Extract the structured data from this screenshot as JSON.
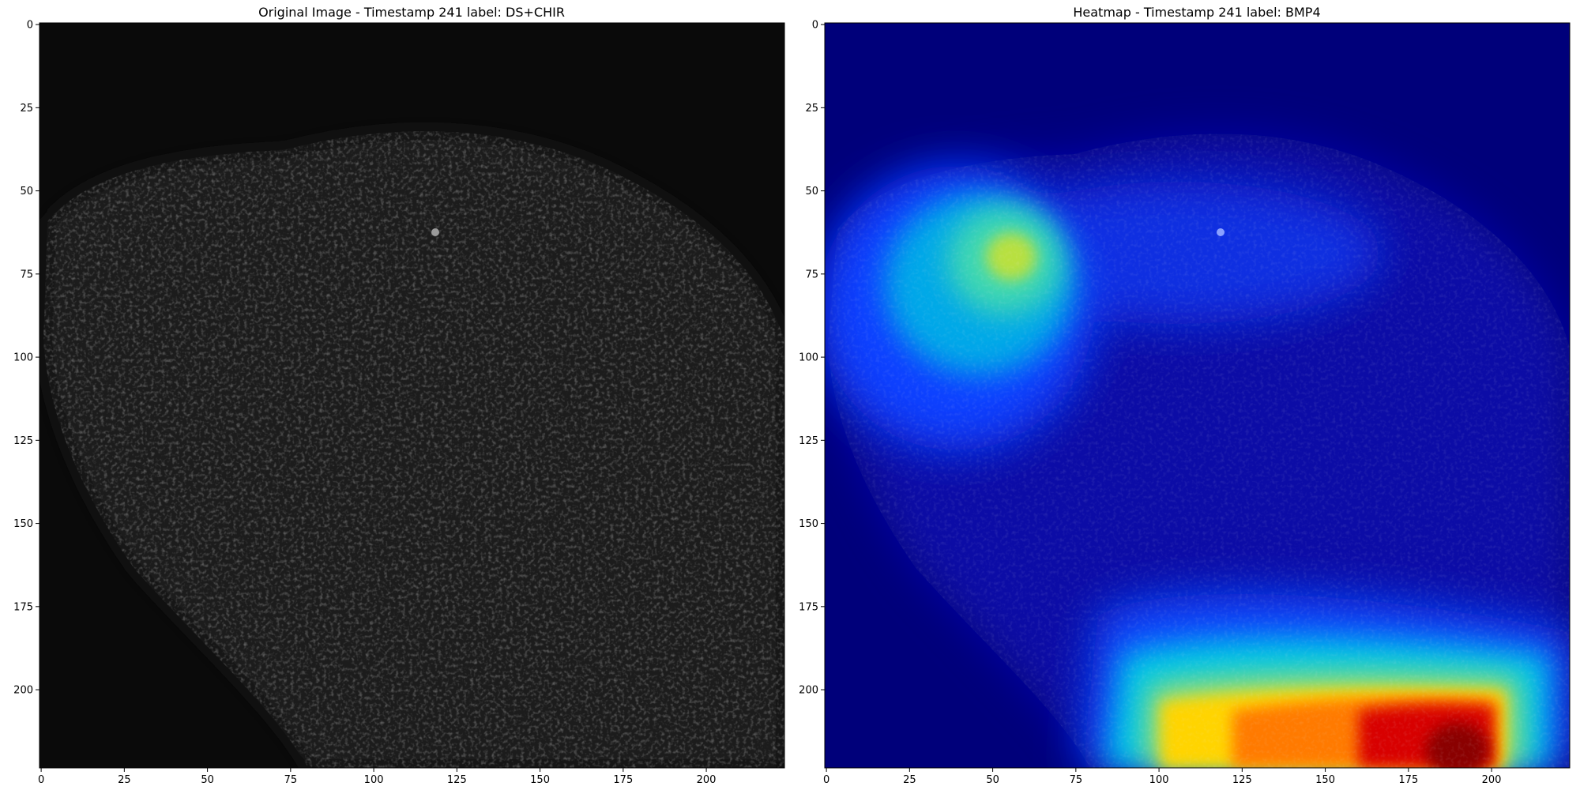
{
  "panels": [
    {
      "title": "Original Image - Timestamp 241 label: DS+CHIR",
      "kind": "grayscale-microscopy",
      "colors": {
        "background": "#0a0a0a",
        "tissue": "#2a2a2a",
        "speckle": "#3c3c3c",
        "bright_spot": "#9a9a9a"
      },
      "x_ticks": [
        "0",
        "25",
        "50",
        "75",
        "100",
        "125",
        "150",
        "175",
        "200"
      ],
      "y_ticks": [
        "0",
        "25",
        "50",
        "75",
        "100",
        "125",
        "150",
        "175",
        "200"
      ]
    },
    {
      "title": "Heatmap - Timestamp 241 label: BMP4",
      "kind": "jet-heatmap-overlay",
      "colors": {
        "background": "#00007a",
        "low": "#0000d0",
        "mid": "#00c8e6",
        "high": "#ffe600",
        "peak": "#c80000"
      },
      "x_ticks": [
        "0",
        "25",
        "50",
        "75",
        "100",
        "125",
        "150",
        "175",
        "200"
      ],
      "y_ticks": [
        "0",
        "25",
        "50",
        "75",
        "100",
        "125",
        "150",
        "175",
        "200"
      ]
    }
  ]
}
